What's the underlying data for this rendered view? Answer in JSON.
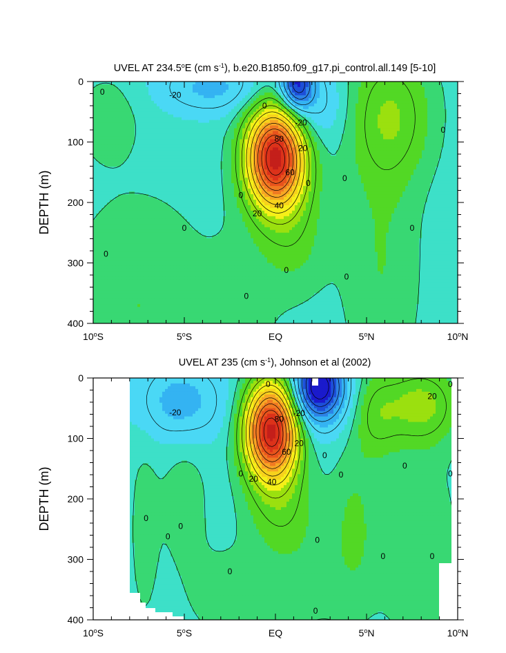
{
  "chart_data": [
    {
      "type": "heatmap",
      "title": "UVEL AT 234.5°E (cm s-1), b.e20.B1850.f09_g17.pi_control.all.149 [5-10]",
      "title_parts": {
        "pre": "UVEL AT 234.5",
        "deg": "o",
        "mid": "E (cm s",
        "sup": "-1",
        "post": "), b.e20.B1850.f09_g17.pi_control.all.149 [5-10]"
      },
      "xlabel": "",
      "ylabel": "DEPTH (m)",
      "xlim": [
        -10,
        10
      ],
      "ylim": [
        400,
        0
      ],
      "x_ticks": [
        {
          "value": -10,
          "num": "10",
          "deg": "o",
          "hem": "S"
        },
        {
          "value": -5,
          "num": "5",
          "deg": "o",
          "hem": "S"
        },
        {
          "value": 0,
          "num": "EQ",
          "deg": "",
          "hem": ""
        },
        {
          "value": 5,
          "num": "5",
          "deg": "o",
          "hem": "N"
        },
        {
          "value": 10,
          "num": "10",
          "deg": "o",
          "hem": "N"
        }
      ],
      "y_ticks": [
        "0",
        "100",
        "200",
        "300",
        "400"
      ],
      "contour_interval": 10,
      "background_value": -3,
      "features": [
        {
          "lon": 0.0,
          "depth": 125,
          "sx": 1.1,
          "sz": 58,
          "amp": 92
        },
        {
          "lon": 1.0,
          "depth": 255,
          "sx": 1.3,
          "sz": 70,
          "amp": 10
        },
        {
          "lon": 1.2,
          "depth": 5,
          "sx": 0.6,
          "sz": 28,
          "amp": -40
        },
        {
          "lon": 1.8,
          "depth": 40,
          "sx": 1.4,
          "sz": 45,
          "amp": -12
        },
        {
          "lon": -3.5,
          "depth": 10,
          "sx": 2.0,
          "sz": 30,
          "amp": -14
        },
        {
          "lon": 6.3,
          "depth": 55,
          "sx": 1.6,
          "sz": 75,
          "amp": 17
        },
        {
          "lon": 5.8,
          "depth": 300,
          "sx": 1.5,
          "sz": 160,
          "amp": 8
        },
        {
          "lon": -9.2,
          "depth": 60,
          "sx": 1.2,
          "sz": 50,
          "amp": 6
        },
        {
          "lon": -7.5,
          "depth": 370,
          "sx": 2.8,
          "sz": 130,
          "amp": 8
        },
        {
          "lon": -1.8,
          "depth": 370,
          "sx": 1.3,
          "sz": 90,
          "amp": 5
        }
      ],
      "contour_labels": [
        {
          "text": "0",
          "lon": -9.5,
          "depth": 17
        },
        {
          "text": "-20",
          "lon": -5.5,
          "depth": 22
        },
        {
          "text": "0",
          "lon": -0.6,
          "depth": 40
        },
        {
          "text": "-20",
          "lon": 1.4,
          "depth": 68
        },
        {
          "text": "80",
          "lon": 0.2,
          "depth": 95
        },
        {
          "text": "20",
          "lon": 1.5,
          "depth": 110
        },
        {
          "text": "60",
          "lon": 0.8,
          "depth": 150
        },
        {
          "text": "0",
          "lon": 3.8,
          "depth": 160
        },
        {
          "text": "0",
          "lon": 9.2,
          "depth": 80
        },
        {
          "text": "0",
          "lon": 1.8,
          "depth": 168
        },
        {
          "text": "0",
          "lon": -1.9,
          "depth": 188
        },
        {
          "text": "40",
          "lon": 0.2,
          "depth": 205
        },
        {
          "text": "20",
          "lon": -1.0,
          "depth": 218
        },
        {
          "text": "0",
          "lon": -5.0,
          "depth": 242
        },
        {
          "text": "0",
          "lon": 7.5,
          "depth": 242
        },
        {
          "text": "0",
          "lon": -9.3,
          "depth": 285
        },
        {
          "text": "0",
          "lon": 0.6,
          "depth": 312
        },
        {
          "text": "0",
          "lon": 3.9,
          "depth": 323
        },
        {
          "text": "0",
          "lon": -1.6,
          "depth": 355
        }
      ]
    },
    {
      "type": "heatmap",
      "title": "UVEL AT 235 (cm s-1), Johnson et al (2002)",
      "title_parts": {
        "pre": "UVEL AT 235",
        "deg": "",
        "mid": " (cm s",
        "sup": "-1",
        "post": "), Johnson et al (2002)"
      },
      "xlabel": "",
      "ylabel": "DEPTH (m)",
      "xlim": [
        -10,
        10
      ],
      "ylim": [
        400,
        0
      ],
      "x_ticks": [
        {
          "value": -10,
          "num": "10",
          "deg": "o",
          "hem": "S"
        },
        {
          "value": -5,
          "num": "5",
          "deg": "o",
          "hem": "S"
        },
        {
          "value": 0,
          "num": "EQ",
          "deg": "",
          "hem": ""
        },
        {
          "value": 5,
          "num": "5",
          "deg": "o",
          "hem": "N"
        },
        {
          "value": 10,
          "num": "10",
          "deg": "o",
          "hem": "N"
        }
      ],
      "y_ticks": [
        "0",
        "100",
        "200",
        "300",
        "400"
      ],
      "contour_interval": 10,
      "background_value": -3,
      "data_domain": {
        "lon": [
          -8.0,
          9.6
        ],
        "depth": [
          5,
          400
        ]
      },
      "features": [
        {
          "lon": -0.2,
          "depth": 85,
          "sx": 1.0,
          "sz": 55,
          "amp": 95
        },
        {
          "lon": 0.3,
          "depth": 210,
          "sx": 1.3,
          "sz": 55,
          "amp": 12
        },
        {
          "lon": 2.4,
          "depth": 12,
          "sx": 0.9,
          "sz": 35,
          "amp": -48
        },
        {
          "lon": 1.6,
          "depth": 45,
          "sx": 1.8,
          "sz": 45,
          "amp": -12
        },
        {
          "lon": -5.2,
          "depth": 40,
          "sx": 1.6,
          "sz": 45,
          "amp": -16
        },
        {
          "lon": 8.0,
          "depth": 45,
          "sx": 1.4,
          "sz": 45,
          "amp": 20
        },
        {
          "lon": 5.5,
          "depth": 60,
          "sx": 0.9,
          "sz": 50,
          "amp": 13
        },
        {
          "lon": 4.3,
          "depth": 240,
          "sx": 0.9,
          "sz": 100,
          "amp": 8
        },
        {
          "lon": -5.0,
          "depth": 200,
          "sx": 0.9,
          "sz": 80,
          "amp": 6
        },
        {
          "lon": -7.2,
          "depth": 250,
          "sx": 0.6,
          "sz": 120,
          "amp": 5
        },
        {
          "lon": 7.8,
          "depth": 280,
          "sx": 1.6,
          "sz": 120,
          "amp": 7
        },
        {
          "lon": 1.5,
          "depth": 330,
          "sx": 1.8,
          "sz": 70,
          "amp": 5
        },
        {
          "lon": -2.8,
          "depth": 360,
          "sx": 1.6,
          "sz": 60,
          "amp": 5
        }
      ],
      "contour_labels": [
        {
          "text": "0",
          "lon": -0.4,
          "depth": 10
        },
        {
          "text": "0",
          "lon": 9.6,
          "depth": 10
        },
        {
          "text": "20",
          "lon": 8.6,
          "depth": 30
        },
        {
          "text": "-20",
          "lon": -5.5,
          "depth": 57
        },
        {
          "text": "-20",
          "lon": 1.3,
          "depth": 58
        },
        {
          "text": "80",
          "lon": 0.2,
          "depth": 68
        },
        {
          "text": "20",
          "lon": 1.3,
          "depth": 108
        },
        {
          "text": "60",
          "lon": 0.6,
          "depth": 122
        },
        {
          "text": "0",
          "lon": 2.7,
          "depth": 128
        },
        {
          "text": "0",
          "lon": 7.1,
          "depth": 145
        },
        {
          "text": "0",
          "lon": -1.9,
          "depth": 158
        },
        {
          "text": "0",
          "lon": 9.6,
          "depth": 158
        },
        {
          "text": "0",
          "lon": 3.6,
          "depth": 160
        },
        {
          "text": "20",
          "lon": -1.2,
          "depth": 167
        },
        {
          "text": "40",
          "lon": -0.2,
          "depth": 172
        },
        {
          "text": "0",
          "lon": -7.1,
          "depth": 232
        },
        {
          "text": "0",
          "lon": -5.2,
          "depth": 245
        },
        {
          "text": "0",
          "lon": -5.9,
          "depth": 262
        },
        {
          "text": "0",
          "lon": 2.3,
          "depth": 268
        },
        {
          "text": "0",
          "lon": 5.9,
          "depth": 295
        },
        {
          "text": "0",
          "lon": 8.6,
          "depth": 295
        },
        {
          "text": "0",
          "lon": -2.5,
          "depth": 320
        },
        {
          "text": "0",
          "lon": 2.2,
          "depth": 385
        }
      ]
    }
  ],
  "palette": [
    {
      "lo": -999,
      "hi": -45,
      "color": "#1a1acc"
    },
    {
      "lo": -45,
      "hi": -35,
      "color": "#1d4fd8"
    },
    {
      "lo": -35,
      "hi": -25,
      "color": "#2c82e6"
    },
    {
      "lo": -25,
      "hi": -15,
      "color": "#34b3f2"
    },
    {
      "lo": -15,
      "hi": -5,
      "color": "#4ad8f5"
    },
    {
      "lo": -5,
      "hi": 0,
      "color": "#3de0c8"
    },
    {
      "lo": 0,
      "hi": 5,
      "color": "#38d873"
    },
    {
      "lo": 5,
      "hi": 15,
      "color": "#52d825"
    },
    {
      "lo": 15,
      "hi": 25,
      "color": "#9be00f"
    },
    {
      "lo": 25,
      "hi": 35,
      "color": "#f5f018"
    },
    {
      "lo": 35,
      "hi": 45,
      "color": "#f7d21c"
    },
    {
      "lo": 45,
      "hi": 55,
      "color": "#f7a624"
    },
    {
      "lo": 55,
      "hi": 65,
      "color": "#f07a22"
    },
    {
      "lo": 65,
      "hi": 75,
      "color": "#e8531c"
    },
    {
      "lo": 75,
      "hi": 85,
      "color": "#dc321a"
    },
    {
      "lo": 85,
      "hi": 999,
      "color": "#c41f1a"
    }
  ]
}
